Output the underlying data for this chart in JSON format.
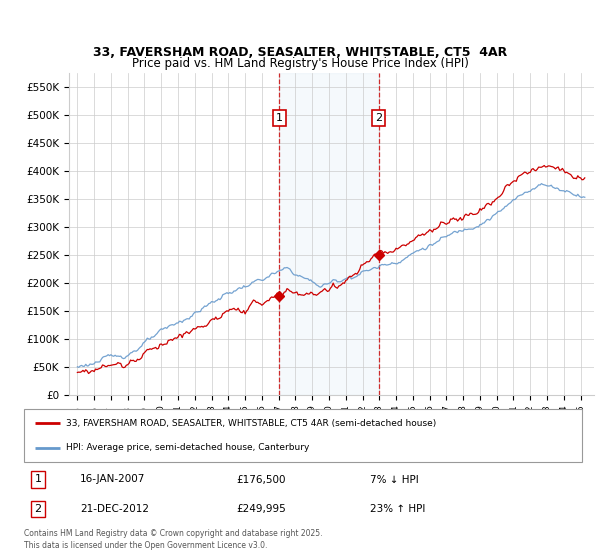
{
  "title": "33, FAVERSHAM ROAD, SEASALTER, WHITSTABLE, CT5  4AR",
  "subtitle": "Price paid vs. HM Land Registry's House Price Index (HPI)",
  "ylim": [
    0,
    575000
  ],
  "yticks": [
    0,
    50000,
    100000,
    150000,
    200000,
    250000,
    300000,
    350000,
    400000,
    450000,
    500000,
    550000
  ],
  "ytick_labels": [
    "£0",
    "£50K",
    "£100K",
    "£150K",
    "£200K",
    "£250K",
    "£300K",
    "£350K",
    "£400K",
    "£450K",
    "£500K",
    "£550K"
  ],
  "xlim_start": 1994.5,
  "xlim_end": 2025.8,
  "transaction1_date": "16-JAN-2007",
  "transaction1_price": 176500,
  "transaction1_pct": "7% ↓ HPI",
  "transaction1_year": 2007.04,
  "transaction2_date": "21-DEC-2012",
  "transaction2_price": 249995,
  "transaction2_year": 2012.97,
  "transaction2_pct": "23% ↑ HPI",
  "legend_label_red": "33, FAVERSHAM ROAD, SEASALTER, WHITSTABLE, CT5 4AR (semi-detached house)",
  "legend_label_blue": "HPI: Average price, semi-detached house, Canterbury",
  "footer": "Contains HM Land Registry data © Crown copyright and database right 2025.\nThis data is licensed under the Open Government Licence v3.0.",
  "red_color": "#cc0000",
  "blue_color": "#6699cc",
  "shading_color": "#ddeeff",
  "background_color": "#ffffff",
  "grid_color": "#cccccc"
}
